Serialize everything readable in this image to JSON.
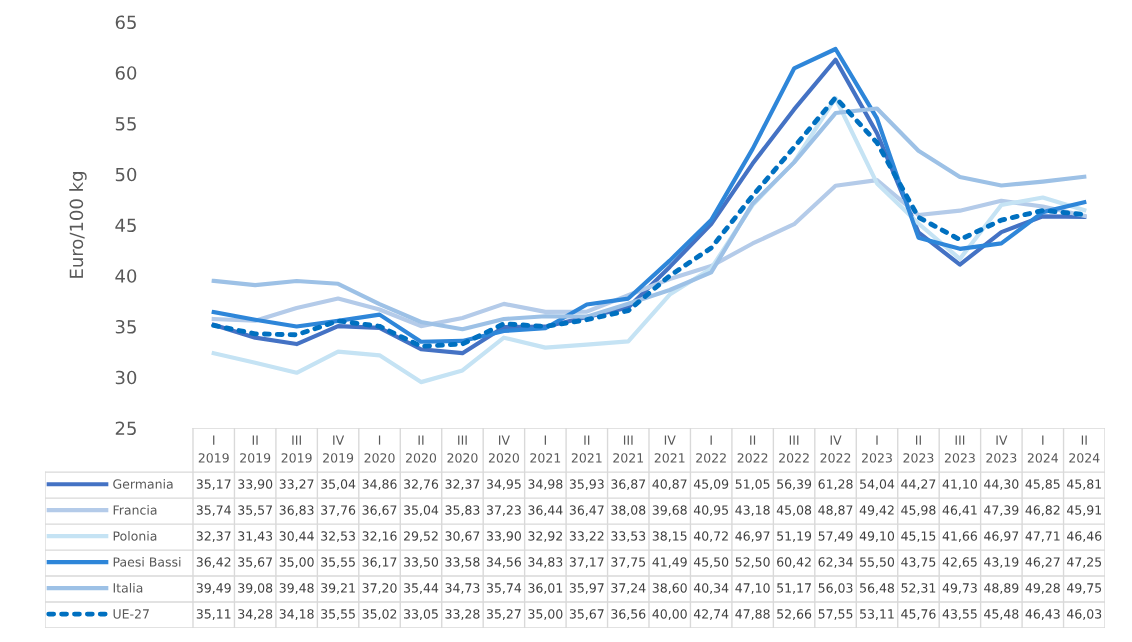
{
  "chart_data": {
    "type": "line",
    "ylabel": "Euro/100 kg",
    "ylim": [
      25,
      65
    ],
    "yticks": [
      25,
      30,
      35,
      40,
      45,
      50,
      55,
      60,
      65
    ],
    "grid": false,
    "legend": "bottom",
    "marker": "none",
    "categories": [
      "I\n2019",
      "II\n2019",
      "III\n2019",
      "IV\n2019",
      "I\n2020",
      "II\n2020",
      "III\n2020",
      "IV\n2020",
      "I\n2021",
      "II\n2021",
      "III\n2021",
      "IV\n2021",
      "I\n2022",
      "II\n2022",
      "III\n2022",
      "IV\n2022",
      "I\n2023",
      "II\n2023",
      "III\n2023",
      "IV\n2023",
      "I\n2024",
      "II\n2024"
    ],
    "series": [
      {
        "name": "Germania",
        "color": "#4472c4",
        "line_style": "solid",
        "values": [
          35.17,
          33.9,
          33.27,
          35.04,
          34.86,
          32.76,
          32.37,
          34.95,
          34.98,
          35.93,
          36.87,
          40.87,
          45.09,
          51.05,
          56.39,
          61.28,
          54.04,
          44.27,
          41.1,
          44.3,
          45.85,
          45.81
        ],
        "value_labels": [
          "35,17",
          "33,90",
          "33,27",
          "35,04",
          "34,86",
          "32,76",
          "32,37",
          "34,95",
          "34,98",
          "35,93",
          "36,87",
          "40,87",
          "45,09",
          "51,05",
          "56,39",
          "61,28",
          "54,04",
          "44,27",
          "41,10",
          "44,30",
          "45,85",
          "45,81"
        ]
      },
      {
        "name": "Francia",
        "color": "#b4cbe9",
        "line_style": "solid",
        "values": [
          35.74,
          35.57,
          36.83,
          37.76,
          36.67,
          35.04,
          35.83,
          37.23,
          36.44,
          36.47,
          38.08,
          39.68,
          40.95,
          43.18,
          45.08,
          48.87,
          49.42,
          45.98,
          46.41,
          47.39,
          46.82,
          45.91
        ],
        "value_labels": [
          "35,74",
          "35,57",
          "36,83",
          "37,76",
          "36,67",
          "35,04",
          "35,83",
          "37,23",
          "36,44",
          "36,47",
          "38,08",
          "39,68",
          "40,95",
          "43,18",
          "45,08",
          "48,87",
          "49,42",
          "45,98",
          "46,41",
          "47,39",
          "46,82",
          "45,91"
        ]
      },
      {
        "name": "Polonia",
        "color": "#c5e3f4",
        "line_style": "solid",
        "values": [
          32.37,
          31.43,
          30.44,
          32.53,
          32.16,
          29.52,
          30.67,
          33.9,
          32.92,
          33.22,
          33.53,
          38.15,
          40.72,
          46.97,
          51.19,
          57.49,
          49.1,
          45.15,
          41.66,
          46.97,
          47.71,
          46.46
        ],
        "value_labels": [
          "32,37",
          "31,43",
          "30,44",
          "32,53",
          "32,16",
          "29,52",
          "30,67",
          "33,90",
          "32,92",
          "33,22",
          "33,53",
          "38,15",
          "40,72",
          "46,97",
          "51,19",
          "57,49",
          "49,10",
          "45,15",
          "41,66",
          "46,97",
          "47,71",
          "46,46"
        ]
      },
      {
        "name": "Paesi Bassi",
        "color": "#2e86d9",
        "line_style": "solid",
        "values": [
          36.42,
          35.67,
          35.0,
          35.55,
          36.17,
          33.5,
          33.58,
          34.56,
          34.83,
          37.17,
          37.75,
          41.49,
          45.5,
          52.5,
          60.42,
          62.34,
          55.5,
          43.75,
          42.65,
          43.19,
          46.27,
          47.25
        ],
        "value_labels": [
          "36,42",
          "35,67",
          "35,00",
          "35,55",
          "36,17",
          "33,50",
          "33,58",
          "34,56",
          "34,83",
          "37,17",
          "37,75",
          "41,49",
          "45,50",
          "52,50",
          "60,42",
          "62,34",
          "55,50",
          "43,75",
          "42,65",
          "43,19",
          "46,27",
          "47,25"
        ]
      },
      {
        "name": "Italia",
        "color": "#9dc1e6",
        "line_style": "solid",
        "values": [
          39.49,
          39.08,
          39.48,
          39.21,
          37.2,
          35.44,
          34.73,
          35.74,
          36.01,
          35.97,
          37.24,
          38.6,
          40.34,
          47.1,
          51.17,
          56.03,
          56.48,
          52.31,
          49.73,
          48.89,
          49.28,
          49.75
        ],
        "value_labels": [
          "39,49",
          "39,08",
          "39,48",
          "39,21",
          "37,20",
          "35,44",
          "34,73",
          "35,74",
          "36,01",
          "35,97",
          "37,24",
          "38,60",
          "40,34",
          "47,10",
          "51,17",
          "56,03",
          "56,48",
          "52,31",
          "49,73",
          "48,89",
          "49,28",
          "49,75"
        ]
      },
      {
        "name": "UE-27",
        "color": "#0070c0",
        "line_style": "dotted",
        "values": [
          35.11,
          34.28,
          34.18,
          35.55,
          35.02,
          33.05,
          33.28,
          35.27,
          35.0,
          35.67,
          36.56,
          40.0,
          42.74,
          47.88,
          52.66,
          57.55,
          53.11,
          45.76,
          43.55,
          45.48,
          46.43,
          46.03
        ],
        "value_labels": [
          "35,11",
          "34,28",
          "34,18",
          "35,55",
          "35,02",
          "33,05",
          "33,28",
          "35,27",
          "35,00",
          "35,67",
          "36,56",
          "40,00",
          "42,74",
          "47,88",
          "52,66",
          "57,55",
          "53,11",
          "45,76",
          "43,55",
          "45,48",
          "46,43",
          "46,03"
        ]
      }
    ]
  }
}
